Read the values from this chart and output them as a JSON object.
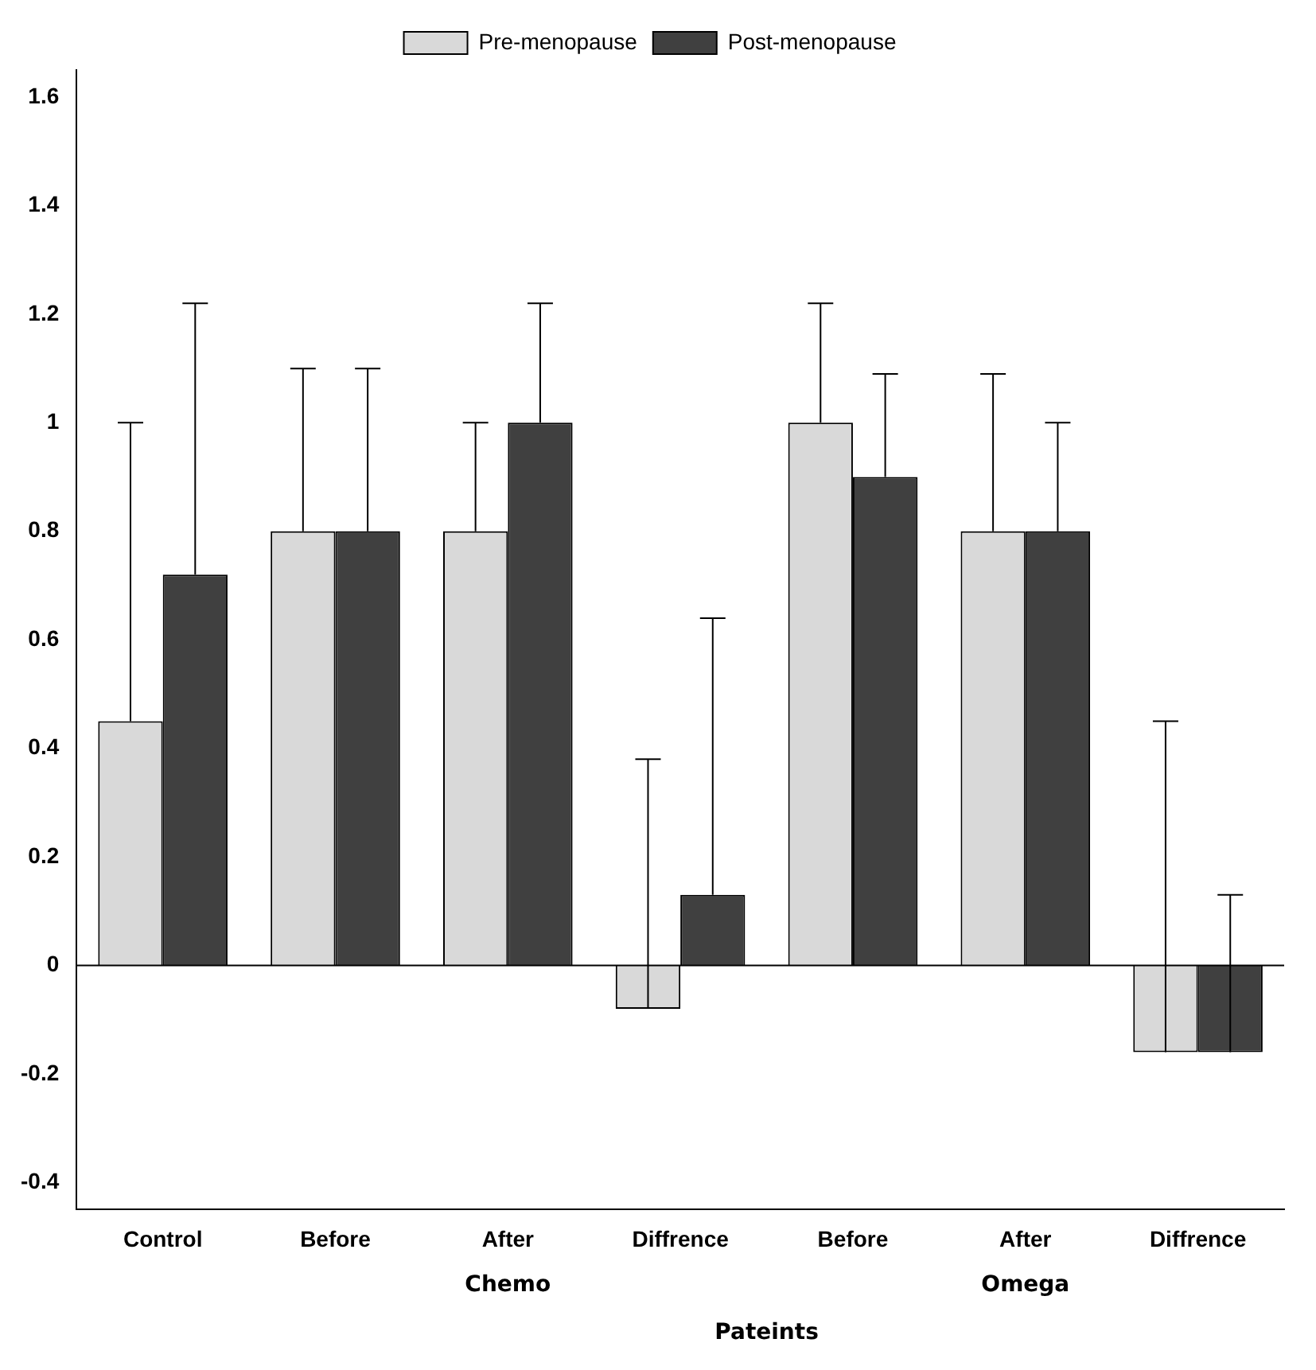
{
  "chart_data": {
    "type": "bar",
    "categories": [
      "Control",
      "Before",
      "After",
      "Diffrence",
      "Before",
      "After",
      "Diffrence"
    ],
    "series": [
      {
        "name": "Pre-menopause",
        "color": "#d9d9d9",
        "values": [
          0.45,
          0.8,
          0.8,
          -0.08,
          1.0,
          0.8,
          -0.16
        ],
        "errors": [
          [
            0.45,
            1.0
          ],
          [
            0.8,
            1.1
          ],
          [
            0.8,
            1.0
          ],
          [
            -0.08,
            0.38
          ],
          [
            1.0,
            1.22
          ],
          [
            0.8,
            1.09
          ],
          [
            -0.16,
            0.45
          ]
        ]
      },
      {
        "name": "Post-menopause",
        "color": "#404040",
        "values": [
          0.72,
          0.8,
          1.0,
          0.13,
          0.9,
          0.8,
          -0.16
        ],
        "errors": [
          [
            0.72,
            1.22
          ],
          [
            0.8,
            1.1
          ],
          [
            1.0,
            1.22
          ],
          [
            0.13,
            0.64
          ],
          [
            0.9,
            1.09
          ],
          [
            0.8,
            1.0
          ],
          [
            -0.16,
            0.13
          ]
        ]
      }
    ],
    "ylim": [
      -0.45,
      1.65
    ],
    "yticks": [
      -0.4,
      -0.2,
      0,
      0.2,
      0.4,
      0.6,
      0.8,
      1,
      1.2,
      1.4,
      1.6
    ],
    "annotations": [
      "Chemo",
      "Omega",
      "Pateints"
    ],
    "ref_lines": [
      {
        "axis": "y",
        "value": 0
      }
    ],
    "legend": "top",
    "grid": false
  }
}
